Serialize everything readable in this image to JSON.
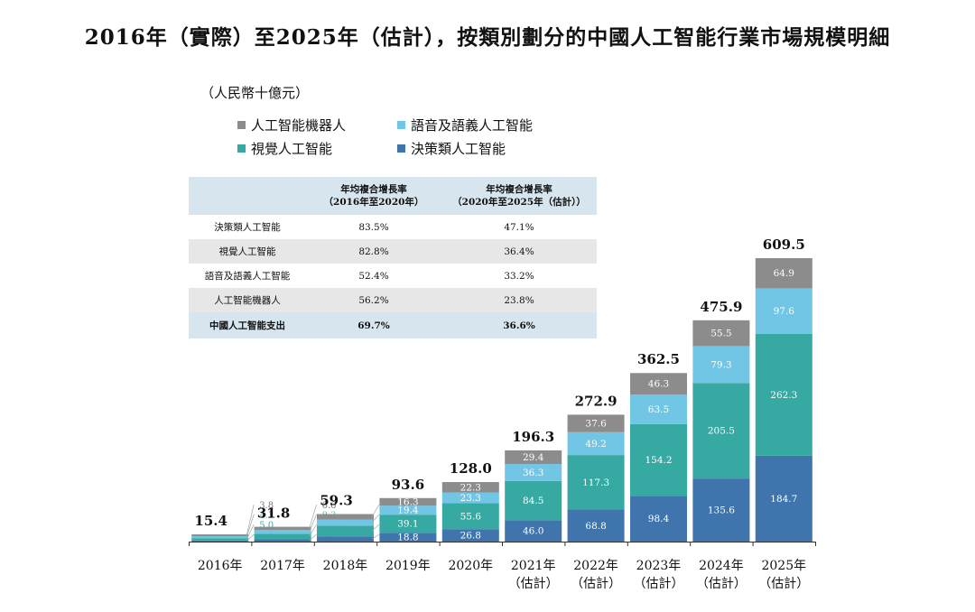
{
  "chart_data": {
    "type": "bar",
    "stacked": true,
    "title": "2016年（實際）至2025年（估計），按類別劃分的中國人工智能行業市場規模明細",
    "unit": "（人民幣十億元）",
    "categories": [
      [
        "2016年"
      ],
      [
        "2017年"
      ],
      [
        "2018年"
      ],
      [
        "2019年"
      ],
      [
        "2020年"
      ],
      [
        "2021年",
        "（估計）"
      ],
      [
        "2022年",
        "（估計）"
      ],
      [
        "2023年",
        "（估計）"
      ],
      [
        "2024年",
        "（估計）"
      ],
      [
        "2025年",
        "（估計）"
      ]
    ],
    "totals": [
      15.4,
      31.8,
      59.3,
      93.6,
      128.0,
      196.3,
      272.9,
      362.5,
      475.9,
      609.5
    ],
    "series": [
      {
        "name": "決策類人工智能",
        "color": "#3f74ad",
        "values": [
          2.4,
          5.5,
          10.9,
          18.8,
          26.8,
          46.0,
          68.8,
          98.4,
          135.6,
          184.7
        ]
      },
      {
        "name": "視覺人工智能",
        "color": "#36a9a3",
        "values": [
          5.0,
          11.4,
          23.4,
          39.1,
          55.6,
          84.5,
          117.3,
          154.2,
          205.5,
          262.3
        ]
      },
      {
        "name": "語音及語義人工智能",
        "color": "#70c6e4",
        "values": [
          4.3,
          8.3,
          13.3,
          19.4,
          23.3,
          36.3,
          49.2,
          63.5,
          79.3,
          97.6
        ]
      },
      {
        "name": "人工智能機器人",
        "color": "#8c8c8c",
        "values": [
          3.8,
          6.6,
          11.6,
          16.3,
          22.3,
          29.4,
          37.6,
          46.3,
          55.5,
          64.9
        ]
      }
    ],
    "legend": [
      {
        "name": "人工智能機器人",
        "color": "#8c8c8c"
      },
      {
        "name": "語音及語義人工智能",
        "color": "#70c6e4"
      },
      {
        "name": "視覺人工智能",
        "color": "#36a9a3"
      },
      {
        "name": "決策類人工智能",
        "color": "#3f74ad"
      }
    ],
    "ylim": [
      0,
      700
    ],
    "legend_position": "top-left",
    "cagr_table": {
      "headers": [
        "",
        "年均複合增長率\n（2016年至2020年）",
        "年均複合增長率\n（2020年至2025年（估計））"
      ],
      "rows": [
        [
          "決策類人工智能",
          "83.5%",
          "47.1%"
        ],
        [
          "視覺人工智能",
          "82.8%",
          "36.4%"
        ],
        [
          "語音及語義人工智能",
          "52.4%",
          "33.2%"
        ],
        [
          "人工智能機器人",
          "56.2%",
          "23.8%"
        ],
        [
          "中國人工智能支出",
          "69.7%",
          "36.6%"
        ]
      ]
    }
  }
}
